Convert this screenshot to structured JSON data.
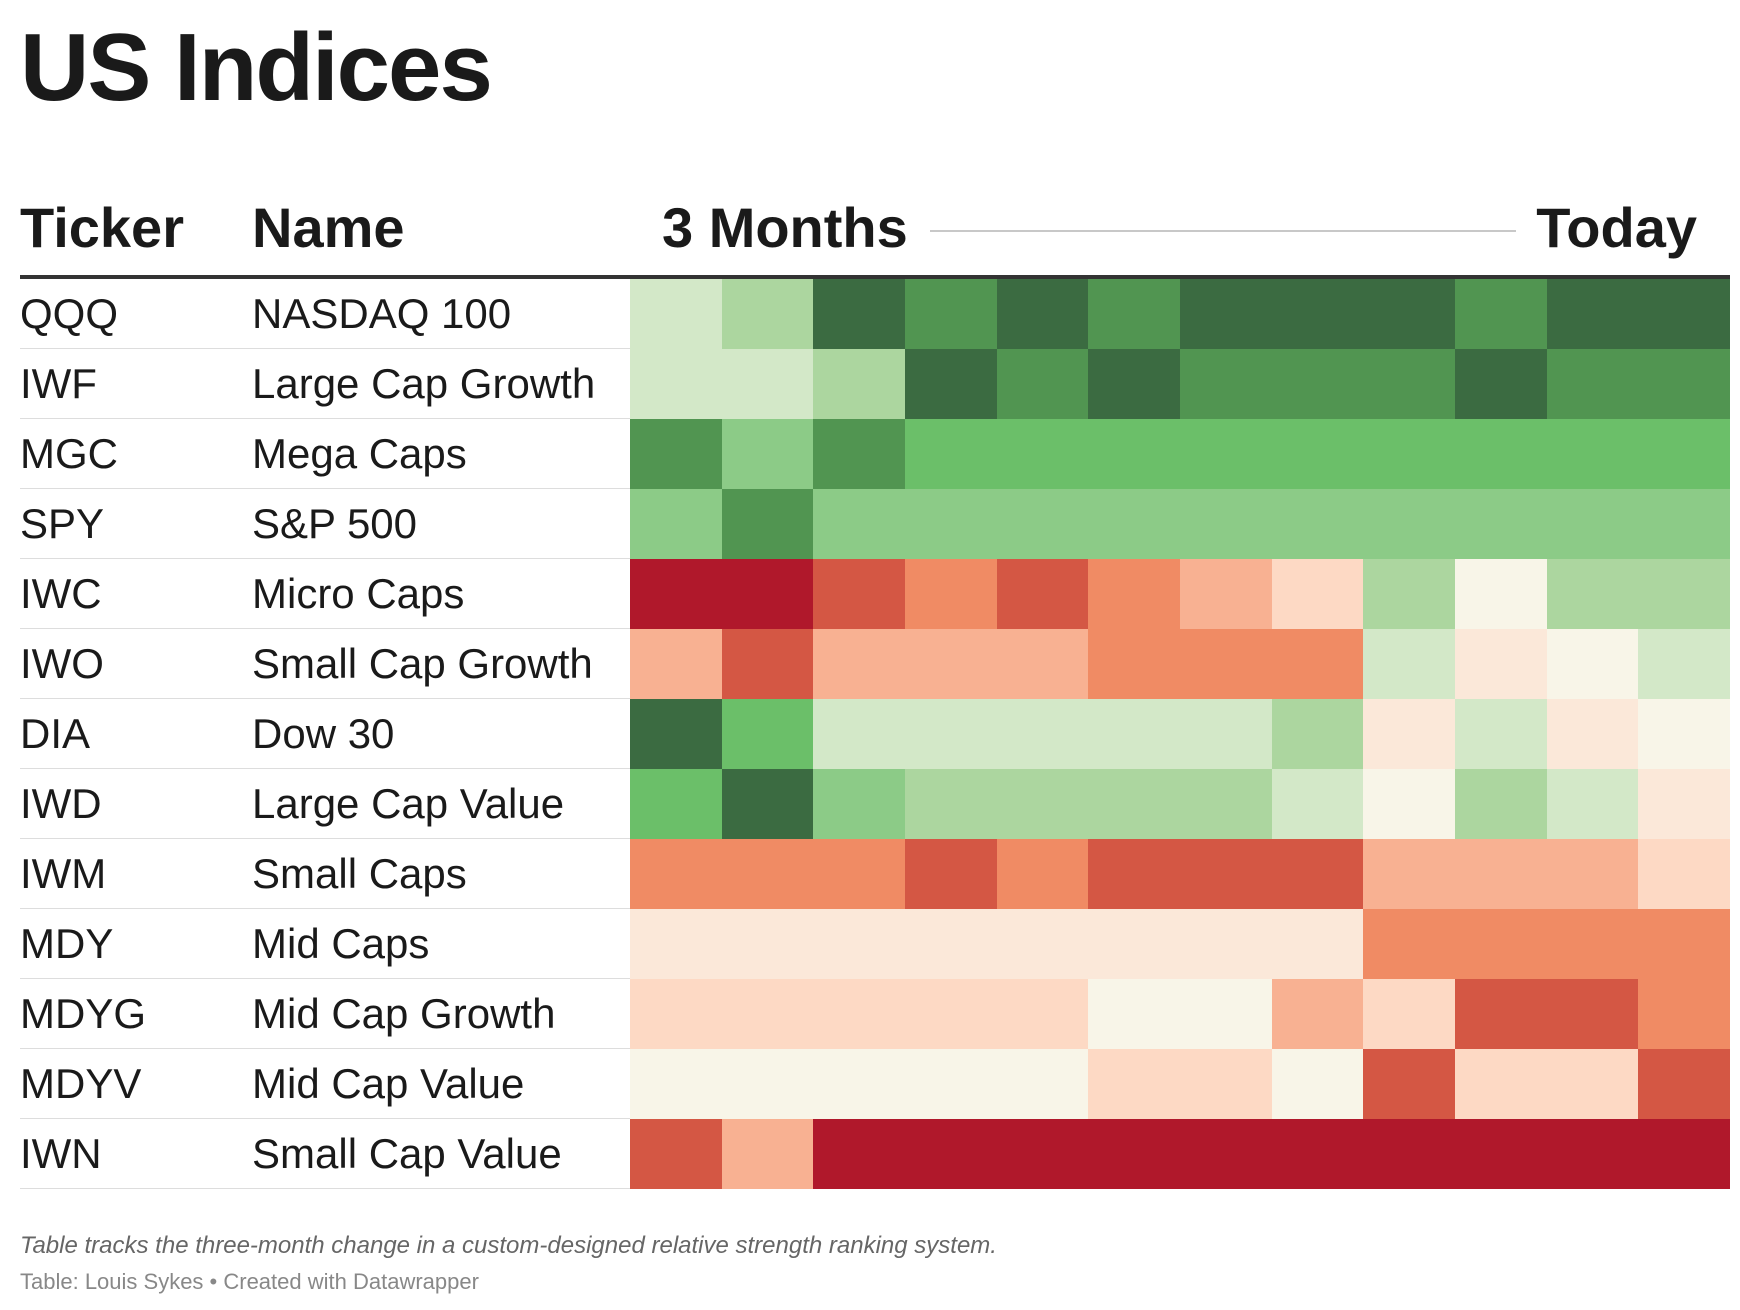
{
  "title": "US Indices",
  "columns": {
    "ticker": "Ticker",
    "name": "Name",
    "period_start": "3 Months",
    "period_end": "Today"
  },
  "palette": {
    "r5": "#b0182b",
    "r4": "#d45744",
    "r3": "#f08b64",
    "r2": "#f8b192",
    "r1": "#fdd9c4",
    "r0": "#fbe8d9",
    "n": "#f8f5e8",
    "g1": "#d3e8c8",
    "g2": "#acd69f",
    "g3": "#8ccb87",
    "g4": "#6bbf69",
    "g5": "#519551",
    "g6": "#3b6b41"
  },
  "chart_data": {
    "type": "heatmap",
    "title": "US Indices",
    "x_start_label": "3 Months",
    "x_end_label": "Today",
    "rows": [
      {
        "ticker": "QQQ",
        "name": "NASDAQ 100",
        "cells": [
          "g1",
          "g2",
          "g6",
          "g5",
          "g6",
          "g5",
          "g6",
          "g6",
          "g6",
          "g5",
          "g6",
          "g6"
        ]
      },
      {
        "ticker": "IWF",
        "name": "Large Cap Growth",
        "cells": [
          "g1",
          "g1",
          "g2",
          "g6",
          "g5",
          "g6",
          "g5",
          "g5",
          "g5",
          "g6",
          "g5",
          "g5"
        ]
      },
      {
        "ticker": "MGC",
        "name": "Mega Caps",
        "cells": [
          "g5",
          "g3",
          "g5",
          "g4",
          "g4",
          "g4",
          "g4",
          "g4",
          "g4",
          "g4",
          "g4",
          "g4"
        ]
      },
      {
        "ticker": "SPY",
        "name": "S&P 500",
        "cells": [
          "g3",
          "g5",
          "g3",
          "g3",
          "g3",
          "g3",
          "g3",
          "g3",
          "g3",
          "g3",
          "g3",
          "g3"
        ]
      },
      {
        "ticker": "IWC",
        "name": "Micro Caps",
        "cells": [
          "r5",
          "r5",
          "r4",
          "r3",
          "r4",
          "r3",
          "r2",
          "r1",
          "g2",
          "n",
          "g2",
          "g2"
        ]
      },
      {
        "ticker": "IWO",
        "name": "Small Cap Growth",
        "cells": [
          "r2",
          "r4",
          "r2",
          "r2",
          "r2",
          "r3",
          "r3",
          "r3",
          "g1",
          "r0",
          "n",
          "g1"
        ]
      },
      {
        "ticker": "DIA",
        "name": "Dow 30",
        "cells": [
          "g6",
          "g4",
          "g1",
          "g1",
          "g1",
          "g1",
          "g1",
          "g2",
          "r0",
          "g1",
          "r0",
          "n"
        ]
      },
      {
        "ticker": "IWD",
        "name": "Large Cap Value",
        "cells": [
          "g4",
          "g6",
          "g3",
          "g2",
          "g2",
          "g2",
          "g2",
          "g1",
          "n",
          "g2",
          "g1",
          "r0"
        ]
      },
      {
        "ticker": "IWM",
        "name": "Small Caps",
        "cells": [
          "r3",
          "r3",
          "r3",
          "r4",
          "r3",
          "r4",
          "r4",
          "r4",
          "r2",
          "r2",
          "r2",
          "r1"
        ]
      },
      {
        "ticker": "MDY",
        "name": "Mid Caps",
        "cells": [
          "r0",
          "r0",
          "r0",
          "r0",
          "r0",
          "r0",
          "r0",
          "r0",
          "r3",
          "r3",
          "r3",
          "r3"
        ]
      },
      {
        "ticker": "MDYG",
        "name": "Mid Cap Growth",
        "cells": [
          "r1",
          "r1",
          "r1",
          "r1",
          "r1",
          "n",
          "n",
          "r2",
          "r1",
          "r4",
          "r4",
          "r3"
        ]
      },
      {
        "ticker": "MDYV",
        "name": "Mid Cap Value",
        "cells": [
          "n",
          "n",
          "n",
          "n",
          "n",
          "r1",
          "r1",
          "n",
          "r4",
          "r1",
          "r1",
          "r4"
        ]
      },
      {
        "ticker": "IWN",
        "name": "Small Cap Value",
        "cells": [
          "r4",
          "r2",
          "r5",
          "r5",
          "r5",
          "r5",
          "r5",
          "r5",
          "r5",
          "r5",
          "r5",
          "r5"
        ]
      }
    ]
  },
  "footer": {
    "note": "Table tracks the three-month change in a custom-designed relative strength ranking system.",
    "source": "Table: Louis Sykes • Created with Datawrapper"
  }
}
